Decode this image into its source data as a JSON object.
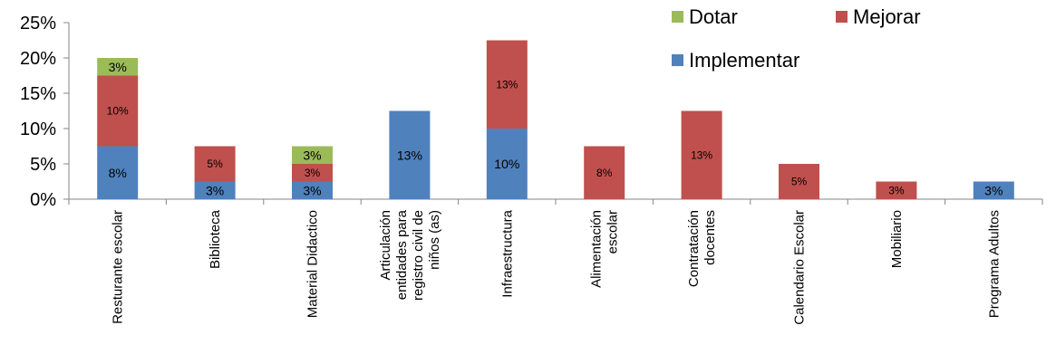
{
  "chart_data": {
    "type": "bar",
    "stacked": true,
    "categories": [
      "Resturante escolar",
      "Biblioteca",
      "Material Didactico",
      "Articulación entidades para registro civil de niños (as)",
      "Infraestructura",
      "Alimentación escolar",
      "Contratación docentes",
      "Calendario Escolar",
      "Mobiliario",
      "Programa Adultos"
    ],
    "category_lines": [
      [
        "Resturante escolar"
      ],
      [
        "Biblioteca"
      ],
      [
        "Material Didactico"
      ],
      [
        "Articulación",
        "entidades para",
        "registro civil de",
        "niños (as)"
      ],
      [
        "Infraestructura"
      ],
      [
        "Alimentación",
        "escolar"
      ],
      [
        "Contratación",
        "docentes"
      ],
      [
        "Calendario Escolar"
      ],
      [
        "Mobiliario"
      ],
      [
        "Programa Adultos"
      ]
    ],
    "series": [
      {
        "name": "Implementar",
        "color": "#4F81BD",
        "values": [
          7.5,
          2.5,
          2.5,
          12.5,
          10,
          0,
          0,
          0,
          0,
          2.5
        ],
        "labels": [
          "8%",
          "3%",
          "3%",
          "13%",
          "10%",
          "",
          "",
          "",
          "",
          "3%"
        ]
      },
      {
        "name": "Mejorar",
        "color": "#C0504D",
        "values": [
          10,
          5,
          2.5,
          0,
          12.5,
          7.5,
          12.5,
          5,
          2.5,
          0
        ],
        "labels": [
          "10%",
          "5%",
          "3%",
          "",
          "13%",
          "8%",
          "13%",
          "5%",
          "3%",
          ""
        ]
      },
      {
        "name": "Dotar",
        "color": "#9BBB59",
        "values": [
          2.5,
          0,
          2.5,
          0,
          0,
          0,
          0,
          0,
          0,
          0
        ],
        "labels": [
          "3%",
          "",
          "3%",
          "",
          "",
          "",
          "",
          "",
          "",
          ""
        ]
      }
    ],
    "ylim": [
      0,
      25
    ],
    "yticks": [
      0,
      5,
      10,
      15,
      20,
      25
    ],
    "ytick_labels": [
      "0%",
      "5%",
      "10%",
      "15%",
      "20%",
      "25%"
    ],
    "legend": {
      "position": "top-right",
      "items": [
        "Dotar",
        "Mejorar",
        "Implementar"
      ]
    },
    "grid": false,
    "title": "",
    "xlabel": "",
    "ylabel": ""
  }
}
